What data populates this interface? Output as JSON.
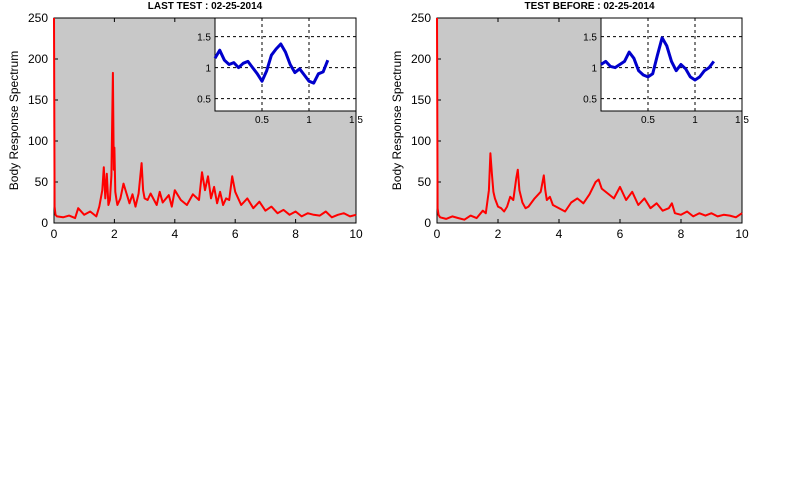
{
  "chart_data": [
    {
      "type": "line",
      "title": "LAST TEST : 02-25-2014",
      "ylabel": "Body Response Spectrum",
      "xlabel": "",
      "xlim": [
        0,
        10
      ],
      "ylim": [
        0,
        250
      ],
      "xticks": [
        0,
        2,
        4,
        6,
        8,
        10
      ],
      "yticks": [
        0,
        50,
        100,
        150,
        200,
        250
      ],
      "background": "#c8c8c8",
      "series": [
        {
          "color": "#ff0000",
          "x": [
            0,
            0.02,
            0.05,
            0.1,
            0.3,
            0.5,
            0.7,
            0.8,
            1.0,
            1.2,
            1.4,
            1.5,
            1.6,
            1.65,
            1.7,
            1.75,
            1.8,
            1.85,
            1.9,
            1.95,
            1.98,
            2.0,
            2.03,
            2.07,
            2.1,
            2.2,
            2.3,
            2.5,
            2.6,
            2.7,
            2.8,
            2.9,
            2.95,
            3.0,
            3.1,
            3.2,
            3.4,
            3.5,
            3.6,
            3.8,
            3.9,
            4.0,
            4.2,
            4.4,
            4.6,
            4.8,
            4.9,
            5.0,
            5.1,
            5.2,
            5.3,
            5.4,
            5.5,
            5.6,
            5.7,
            5.8,
            5.9,
            6.0,
            6.2,
            6.4,
            6.6,
            6.8,
            7.0,
            7.2,
            7.4,
            7.6,
            7.8,
            8.0,
            8.2,
            8.4,
            8.6,
            8.8,
            9.0,
            9.2,
            9.4,
            9.6,
            9.8,
            10.0
          ],
          "y": [
            250,
            20,
            10,
            8,
            7,
            9,
            6,
            18,
            10,
            14,
            8,
            20,
            40,
            68,
            30,
            60,
            22,
            28,
            58,
            183,
            65,
            92,
            38,
            28,
            22,
            30,
            48,
            24,
            35,
            20,
            36,
            73,
            40,
            30,
            28,
            36,
            22,
            38,
            25,
            34,
            20,
            40,
            28,
            22,
            35,
            28,
            62,
            40,
            57,
            30,
            44,
            24,
            38,
            22,
            30,
            28,
            57,
            38,
            22,
            30,
            18,
            26,
            15,
            20,
            12,
            16,
            10,
            14,
            8,
            12,
            10,
            9,
            14,
            7,
            10,
            12,
            8,
            10
          ]
        }
      ],
      "inset": {
        "xlim": [
          0,
          1.5
        ],
        "ylim": [
          0.3,
          1.8
        ],
        "xticks": [
          0.5,
          1,
          1.5
        ],
        "yticks": [
          0.5,
          1,
          1.5
        ],
        "color": "#0000cc",
        "x": [
          0.0,
          0.05,
          0.1,
          0.15,
          0.2,
          0.25,
          0.3,
          0.35,
          0.4,
          0.45,
          0.5,
          0.55,
          0.6,
          0.65,
          0.7,
          0.75,
          0.8,
          0.85,
          0.9,
          0.95,
          1.0,
          1.05,
          1.1,
          1.15,
          1.2
        ],
        "y": [
          1.15,
          1.28,
          1.12,
          1.05,
          1.08,
          1.0,
          1.07,
          1.1,
          1.0,
          0.9,
          0.78,
          0.95,
          1.2,
          1.3,
          1.38,
          1.25,
          1.05,
          0.92,
          0.98,
          0.88,
          0.78,
          0.75,
          0.9,
          0.93,
          1.12
        ]
      }
    },
    {
      "type": "line",
      "title": "TEST BEFORE : 02-25-2014",
      "ylabel": "Body Response Spectrum",
      "xlabel": "",
      "xlim": [
        0,
        10
      ],
      "ylim": [
        0,
        250
      ],
      "xticks": [
        0,
        2,
        4,
        6,
        8,
        10
      ],
      "yticks": [
        0,
        50,
        100,
        150,
        200,
        250
      ],
      "background": "#c8c8c8",
      "series": [
        {
          "color": "#ff0000",
          "x": [
            0,
            0.02,
            0.05,
            0.1,
            0.3,
            0.5,
            0.7,
            0.9,
            1.1,
            1.3,
            1.5,
            1.6,
            1.7,
            1.75,
            1.8,
            1.85,
            1.9,
            2.0,
            2.1,
            2.2,
            2.3,
            2.4,
            2.5,
            2.6,
            2.65,
            2.7,
            2.8,
            2.9,
            3.0,
            3.2,
            3.4,
            3.5,
            3.55,
            3.6,
            3.7,
            3.8,
            4.0,
            4.2,
            4.4,
            4.6,
            4.8,
            5.0,
            5.2,
            5.3,
            5.4,
            5.6,
            5.8,
            6.0,
            6.2,
            6.4,
            6.6,
            6.8,
            7.0,
            7.2,
            7.4,
            7.6,
            7.7,
            7.8,
            8.0,
            8.2,
            8.4,
            8.6,
            8.8,
            9.0,
            9.2,
            9.4,
            9.6,
            9.8,
            10.0
          ],
          "y": [
            250,
            18,
            10,
            7,
            5,
            8,
            6,
            4,
            9,
            6,
            15,
            12,
            40,
            85,
            60,
            38,
            30,
            20,
            18,
            14,
            20,
            32,
            28,
            55,
            65,
            40,
            25,
            18,
            20,
            30,
            38,
            58,
            40,
            28,
            32,
            22,
            18,
            14,
            25,
            30,
            24,
            35,
            50,
            53,
            42,
            36,
            30,
            44,
            28,
            38,
            22,
            30,
            18,
            24,
            15,
            18,
            24,
            12,
            10,
            14,
            8,
            12,
            9,
            12,
            8,
            10,
            9,
            7,
            12
          ]
        }
      ],
      "inset": {
        "xlim": [
          0,
          1.5
        ],
        "ylim": [
          0.3,
          1.8
        ],
        "xticks": [
          0.5,
          1,
          1.5
        ],
        "yticks": [
          0.5,
          1,
          1.5
        ],
        "color": "#0000cc",
        "x": [
          0.0,
          0.05,
          0.1,
          0.15,
          0.2,
          0.25,
          0.3,
          0.35,
          0.4,
          0.45,
          0.5,
          0.55,
          0.6,
          0.65,
          0.7,
          0.75,
          0.8,
          0.85,
          0.9,
          0.95,
          1.0,
          1.05,
          1.1,
          1.15,
          1.2
        ],
        "y": [
          1.05,
          1.1,
          1.02,
          1.0,
          1.05,
          1.1,
          1.25,
          1.15,
          0.95,
          0.88,
          0.85,
          0.9,
          1.2,
          1.48,
          1.35,
          1.1,
          0.95,
          1.05,
          0.98,
          0.85,
          0.8,
          0.85,
          0.95,
          1.0,
          1.1
        ]
      }
    }
  ]
}
